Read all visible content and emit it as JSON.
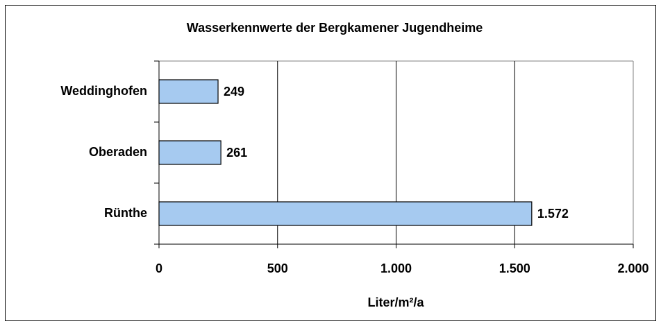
{
  "chart_data": {
    "type": "bar",
    "orientation": "horizontal",
    "title": "Wasserkennwerte der Bergkamener Jugendheime",
    "x_label": "Liter/m²/a",
    "categories": [
      "Weddinghofen",
      "Oberaden",
      "Rünthe"
    ],
    "values": [
      249,
      261,
      1572
    ],
    "value_labels": [
      "249",
      "261",
      "1.572"
    ],
    "color": "#a6caf0",
    "xlim": [
      0,
      2000
    ],
    "xticks": [
      0,
      500,
      {
        "value": 1000,
        "label": "1.000"
      },
      {
        "value": 1500,
        "label": "1.500"
      },
      {
        "value": 2000,
        "label": "2.000"
      }
    ],
    "grid": true
  }
}
